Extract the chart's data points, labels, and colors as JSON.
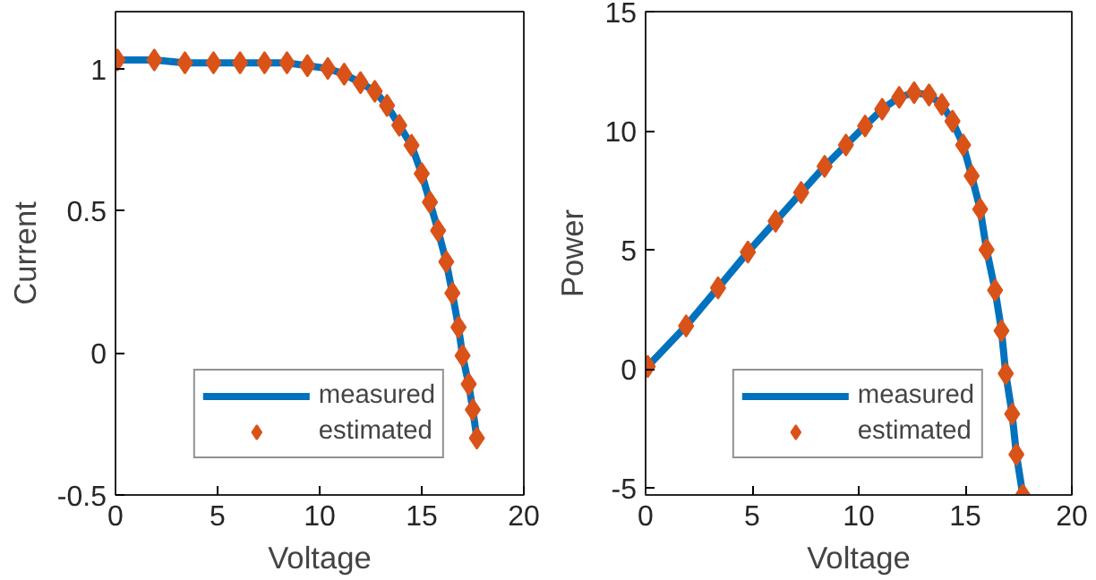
{
  "chart_data": [
    {
      "type": "line",
      "xlabel": "Voltage",
      "ylabel": "Current",
      "xlim": [
        0,
        20
      ],
      "xticks": [
        0,
        5,
        10,
        15,
        20
      ],
      "ylim": [
        -0.5,
        1.2
      ],
      "yticks": [
        -0.5,
        0,
        0.5,
        1
      ],
      "grid": false,
      "legend": "bottom",
      "series": [
        {
          "name": "measured",
          "color": "#0072bd",
          "marker": "none",
          "line_style": "solid",
          "x": [
            0.1,
            1.9,
            3.4,
            4.8,
            6.1,
            7.3,
            8.4,
            9.4,
            10.4,
            11.2,
            12.0,
            12.7,
            13.3,
            13.9,
            14.5,
            15.0,
            15.4,
            15.8,
            16.2,
            16.5,
            16.8,
            17.0,
            17.3,
            17.5,
            17.7
          ],
          "values": [
            1.03,
            1.03,
            1.02,
            1.02,
            1.02,
            1.02,
            1.02,
            1.01,
            1.0,
            0.98,
            0.95,
            0.92,
            0.87,
            0.8,
            0.73,
            0.63,
            0.53,
            0.43,
            0.32,
            0.21,
            0.09,
            -0.01,
            -0.11,
            -0.2,
            -0.3
          ]
        },
        {
          "name": "estimated",
          "type": "scatter",
          "color": "#d95319",
          "marker": "diamond",
          "x": [
            0.1,
            1.9,
            3.4,
            4.8,
            6.1,
            7.3,
            8.4,
            9.4,
            10.4,
            11.2,
            12.0,
            12.7,
            13.3,
            13.9,
            14.5,
            15.0,
            15.4,
            15.8,
            16.2,
            16.5,
            16.8,
            17.0,
            17.3,
            17.5,
            17.7
          ],
          "values": [
            1.03,
            1.03,
            1.02,
            1.02,
            1.02,
            1.02,
            1.02,
            1.01,
            1.0,
            0.98,
            0.95,
            0.92,
            0.87,
            0.8,
            0.73,
            0.63,
            0.53,
            0.43,
            0.32,
            0.21,
            0.09,
            -0.01,
            -0.11,
            -0.2,
            -0.3
          ]
        }
      ]
    },
    {
      "type": "line",
      "xlabel": "Voltage",
      "ylabel": "Power",
      "xlim": [
        0,
        20
      ],
      "xticks": [
        0,
        5,
        10,
        15,
        20
      ],
      "ylim": [
        -5.3,
        15
      ],
      "yticks": [
        -5,
        0,
        5,
        10,
        15
      ],
      "grid": false,
      "legend": "bottom",
      "series": [
        {
          "name": "measured",
          "color": "#0072bd",
          "marker": "none",
          "line_style": "solid",
          "x": [
            0.1,
            1.9,
            3.4,
            4.8,
            6.1,
            7.3,
            8.4,
            9.4,
            10.3,
            11.1,
            11.9,
            12.6,
            13.3,
            13.9,
            14.4,
            14.9,
            15.3,
            15.7,
            16.0,
            16.4,
            16.7,
            16.9,
            17.2,
            17.4,
            17.7
          ],
          "values": [
            0.1,
            1.8,
            3.4,
            4.9,
            6.2,
            7.4,
            8.5,
            9.4,
            10.2,
            10.9,
            11.4,
            11.6,
            11.5,
            11.1,
            10.4,
            9.4,
            8.1,
            6.7,
            5.0,
            3.3,
            1.6,
            -0.2,
            -1.9,
            -3.6,
            -5.3
          ]
        },
        {
          "name": "estimated",
          "type": "scatter",
          "color": "#d95319",
          "marker": "diamond",
          "x": [
            0.1,
            1.9,
            3.4,
            4.8,
            6.1,
            7.3,
            8.4,
            9.4,
            10.3,
            11.1,
            11.9,
            12.6,
            13.3,
            13.9,
            14.4,
            14.9,
            15.3,
            15.7,
            16.0,
            16.4,
            16.7,
            16.9,
            17.2,
            17.4,
            17.7
          ],
          "values": [
            0.1,
            1.8,
            3.4,
            4.9,
            6.2,
            7.4,
            8.5,
            9.4,
            10.2,
            10.9,
            11.4,
            11.6,
            11.5,
            11.1,
            10.4,
            9.4,
            8.1,
            6.7,
            5.0,
            3.3,
            1.6,
            -0.2,
            -1.9,
            -3.6,
            -5.3
          ]
        }
      ]
    }
  ]
}
